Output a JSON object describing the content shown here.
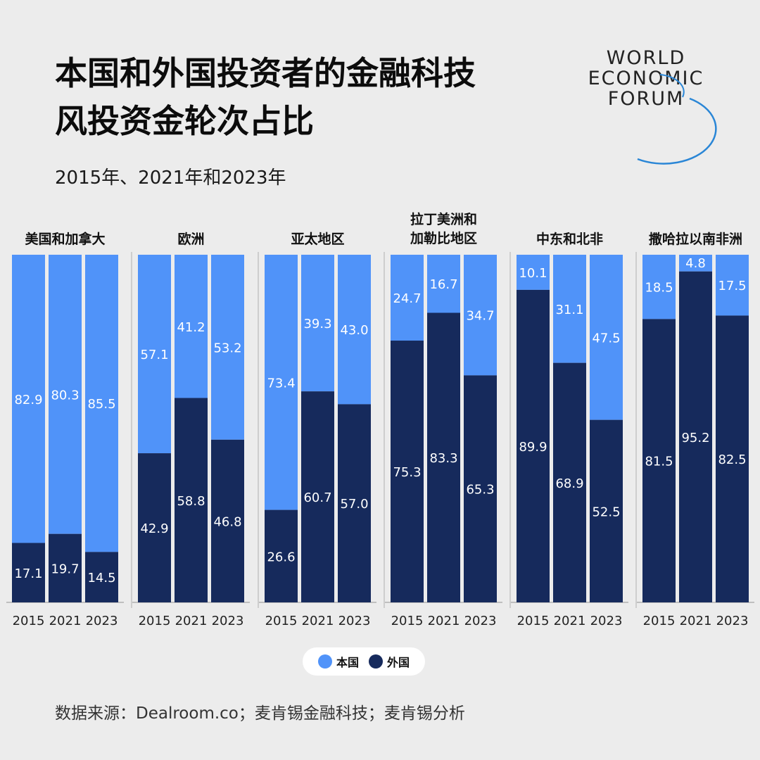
{
  "title_lines": [
    "本国和外国投资者的金融科技",
    "风投资金轮次占比"
  ],
  "subtitle": "2015年、2021年和2023年",
  "logo": {
    "lines": [
      "WORLD",
      "ECONOMIC",
      "FORUM"
    ],
    "arc_color": "#2a86d6"
  },
  "colors": {
    "domestic": "#5093f9",
    "foreign": "#162a5c",
    "axis": "#b0b0b0",
    "background": "#ececec"
  },
  "legend": [
    {
      "label": "本国",
      "color": "#5093f9"
    },
    {
      "label": "外国",
      "color": "#162a5c"
    }
  ],
  "source": "数据来源：Dealroom.co；麦肯锡金融科技；麦肯锡分析",
  "chart_data": {
    "type": "bar",
    "stacked": true,
    "title": "本国和外国投资者的金融科技风投资金轮次占比",
    "subtitle": "2015年、2021年和2023年",
    "ylim": [
      0,
      100
    ],
    "grid": false,
    "legend_position": "bottom-center",
    "categories": [
      "2015",
      "2021",
      "2023"
    ],
    "panels": [
      {
        "region": [
          "美国和加拿大"
        ],
        "domestic": [
          82.9,
          80.3,
          85.5
        ],
        "foreign": [
          17.1,
          19.7,
          14.5
        ]
      },
      {
        "region": [
          "欧洲"
        ],
        "domestic": [
          57.1,
          41.2,
          53.2
        ],
        "foreign": [
          42.9,
          58.8,
          46.8
        ]
      },
      {
        "region": [
          "亚太地区"
        ],
        "domestic": [
          73.4,
          39.3,
          43.0
        ],
        "foreign": [
          26.6,
          60.7,
          57.0
        ]
      },
      {
        "region": [
          "拉丁美洲和",
          "加勒比地区"
        ],
        "domestic": [
          24.7,
          16.7,
          34.7
        ],
        "foreign": [
          75.3,
          83.3,
          65.3
        ]
      },
      {
        "region": [
          "中东和北非"
        ],
        "domestic": [
          10.1,
          31.1,
          47.5
        ],
        "foreign": [
          89.9,
          68.9,
          52.5
        ]
      },
      {
        "region": [
          "撒哈拉以南非洲"
        ],
        "domestic": [
          18.5,
          4.8,
          17.5
        ],
        "foreign": [
          81.5,
          95.2,
          82.5
        ]
      }
    ],
    "series": [
      {
        "name": "本国",
        "key": "domestic"
      },
      {
        "name": "外国",
        "key": "foreign"
      }
    ]
  }
}
